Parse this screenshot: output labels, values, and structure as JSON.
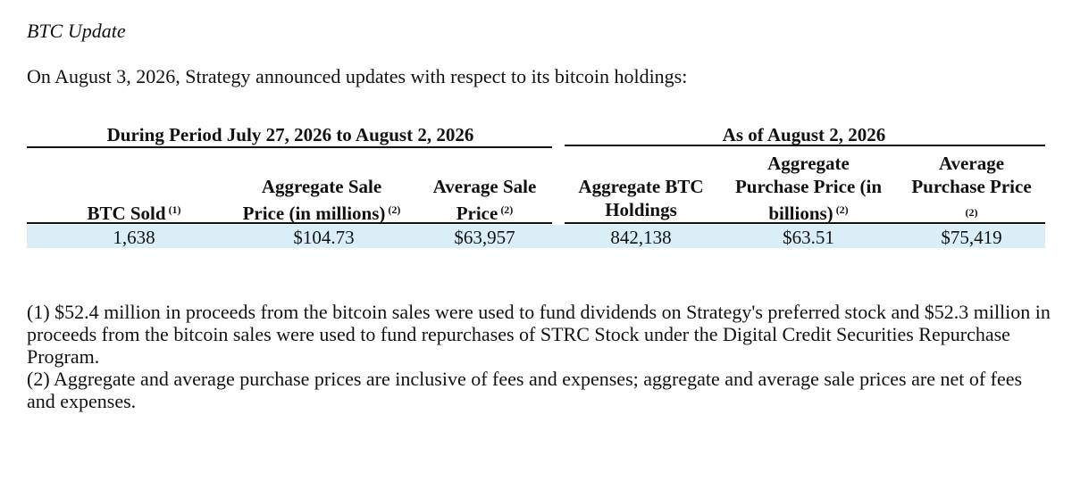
{
  "section_title": "BTC Update",
  "intro": "On August 3, 2026, Strategy announced updates with respect to its bitcoin holdings:",
  "table": {
    "group_headers": {
      "period": "During Period July 27, 2026 to August 2, 2026",
      "as_of": "As of August 2, 2026"
    },
    "columns": [
      {
        "lines": [
          "BTC Sold"
        ],
        "footnote": "(1)"
      },
      {
        "lines": [
          "Aggregate Sale",
          "Price (in millions)"
        ],
        "footnote": "(2)"
      },
      {
        "lines": [
          "Average Sale",
          "Price"
        ],
        "footnote": "(2)"
      },
      {
        "lines": [
          "Aggregate BTC",
          "Holdings"
        ],
        "footnote": ""
      },
      {
        "lines": [
          "Aggregate",
          "Purchase Price (in",
          "billions)"
        ],
        "footnote": "(2)"
      },
      {
        "lines": [
          "Average",
          "Purchase Price"
        ],
        "footnote": "(2)"
      }
    ],
    "row": [
      "1,638",
      "$104.73",
      "$63,957",
      "842,138",
      "$63.51",
      "$75,419"
    ],
    "row_highlight_color": "#d9eef7"
  },
  "footnotes": [
    "(1) $52.4 million in proceeds from the bitcoin sales were used to fund dividends on Strategy's preferred stock and $52.3 million in proceeds from the bitcoin sales were used to fund repurchases of STRC Stock under the Digital Credit Securities Repurchase Program.",
    "(2) Aggregate and average purchase prices are inclusive of fees and expenses; aggregate and average sale prices are net of fees and expenses."
  ]
}
